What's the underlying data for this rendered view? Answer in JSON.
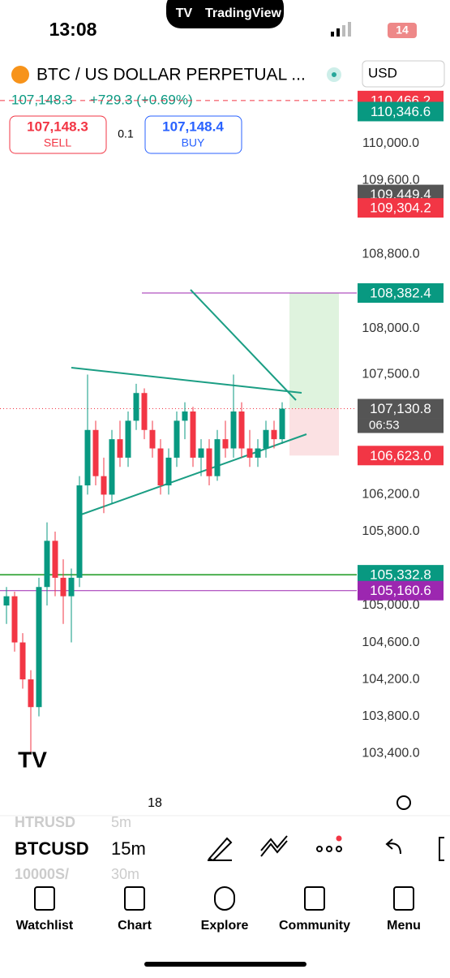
{
  "status_bar": {
    "time": "13:08",
    "app": "TradingView",
    "battery": "14"
  },
  "header": {
    "symbol": "BTC / US DOLLAR PERPETUAL ...",
    "currency": "USD"
  },
  "quote": {
    "last": "107,148.3",
    "change": "+729.3 (+0.69%)"
  },
  "sell": {
    "price": "107,148.3",
    "label": "SELL"
  },
  "spread": "0.1",
  "buy": {
    "price": "107,148.4",
    "label": "BUY"
  },
  "chart_data": {
    "type": "candlestick",
    "up_color": "#089981",
    "down_color": "#f23645",
    "ylim": [
      103120,
      110500
    ],
    "yticks": [
      {
        "value": 110000,
        "label": "110,000.0"
      },
      {
        "value": 109600,
        "label": "109,600.0"
      },
      {
        "value": 108800,
        "label": "108,800.0"
      },
      {
        "value": 108000,
        "label": "108,000.0"
      },
      {
        "value": 107500,
        "label": "107,500.0"
      },
      {
        "value": 106200,
        "label": "106,200.0"
      },
      {
        "value": 105800,
        "label": "105,800.0"
      },
      {
        "value": 105000,
        "label": "105,000.0"
      },
      {
        "value": 104600,
        "label": "104,600.0"
      },
      {
        "value": 104200,
        "label": "104,200.0"
      },
      {
        "value": 103800,
        "label": "103,800.0"
      },
      {
        "value": 103400,
        "label": "103,400.0"
      }
    ],
    "candles": [
      [
        105000,
        105200,
        104800,
        105100
      ],
      [
        105100,
        105150,
        104500,
        104600
      ],
      [
        104600,
        104700,
        104100,
        104200
      ],
      [
        104200,
        104300,
        103400,
        103900
      ],
      [
        103900,
        105300,
        103800,
        105200
      ],
      [
        105200,
        105900,
        105000,
        105700
      ],
      [
        105700,
        105800,
        105100,
        105300
      ],
      [
        105300,
        105500,
        104800,
        105100
      ],
      [
        105100,
        105400,
        104600,
        105300
      ],
      [
        105300,
        106400,
        105200,
        106300
      ],
      [
        106300,
        107500,
        106200,
        106900
      ],
      [
        106900,
        107000,
        106300,
        106400
      ],
      [
        106400,
        106600,
        106000,
        106200
      ],
      [
        106200,
        106900,
        106100,
        106800
      ],
      [
        106800,
        107000,
        106500,
        106600
      ],
      [
        106600,
        107100,
        106500,
        107000
      ],
      [
        107000,
        107400,
        106900,
        107300
      ],
      [
        107300,
        107350,
        106800,
        106900
      ],
      [
        106900,
        107000,
        106600,
        106700
      ],
      [
        106700,
        106800,
        106200,
        106300
      ],
      [
        106300,
        106700,
        106200,
        106600
      ],
      [
        106600,
        107100,
        106500,
        107000
      ],
      [
        107000,
        107200,
        106800,
        107100
      ],
      [
        107100,
        107150,
        106500,
        106600
      ],
      [
        106600,
        106800,
        106400,
        106700
      ],
      [
        106700,
        106800,
        106300,
        106400
      ],
      [
        106400,
        106900,
        106350,
        106800
      ],
      [
        106800,
        107000,
        106600,
        106700
      ],
      [
        106700,
        107500,
        106600,
        107100
      ],
      [
        107100,
        107200,
        106600,
        106700
      ],
      [
        106700,
        106900,
        106500,
        106600
      ],
      [
        106600,
        106800,
        106500,
        106700
      ],
      [
        106700,
        107000,
        106600,
        106900
      ],
      [
        106900,
        107000,
        106700,
        106800
      ],
      [
        106800,
        107200,
        106750,
        107130.8
      ]
    ],
    "price_labels": [
      {
        "value": 110466.2,
        "label": "110,466.2",
        "color": "#f23645"
      },
      {
        "value": 110346.6,
        "label": "110,346.6",
        "color": "#089981"
      },
      {
        "value": 109449.4,
        "label": "109,449.4",
        "color": "#555555"
      },
      {
        "value": 109304.2,
        "label": "109,304.2",
        "color": "#f23645"
      },
      {
        "value": 108382.4,
        "label": "108,382.4",
        "color": "#089981"
      },
      {
        "value": 107130.8,
        "label": "107,130.8",
        "color": "#555555"
      },
      {
        "value": 106623.0,
        "label": "106,623.0",
        "color": "#f23645"
      },
      {
        "value": 105332.8,
        "label": "105,332.8",
        "color": "#089981"
      },
      {
        "value": 105160.6,
        "label": "105,160.6",
        "color": "#9c27b0"
      }
    ],
    "countdown": "06:53",
    "x_label": "18"
  },
  "toolbar": {
    "symbol": "BTCUSD",
    "interval": "15m",
    "prev_symbol": "HTRUSD",
    "next_symbol": "10000S/",
    "prev_interval": "5m",
    "next_interval": "30m"
  },
  "tabs": [
    "Watchlist",
    "Chart",
    "Explore",
    "Community",
    "Menu"
  ]
}
